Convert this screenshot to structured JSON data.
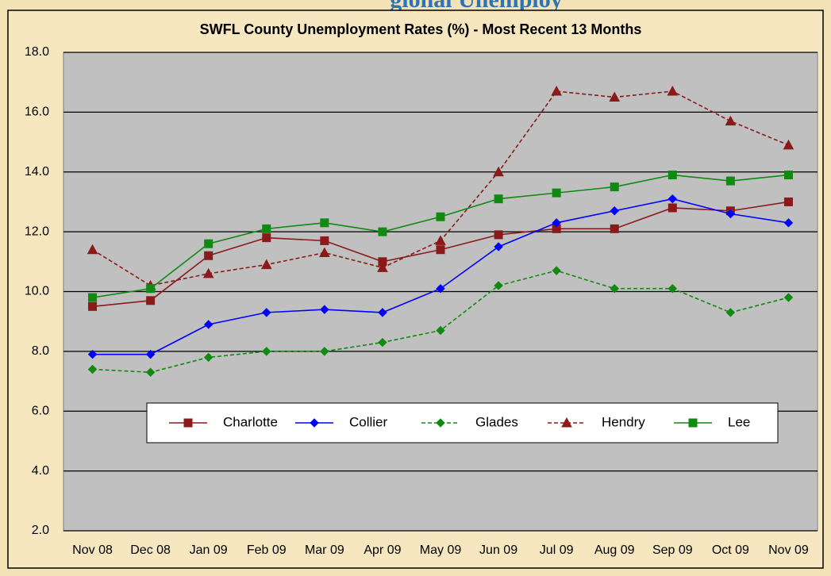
{
  "header_fragment": "gional Unemploy",
  "chart_data": {
    "type": "line",
    "title": "SWFL County Unemployment Rates (%)  - Most Recent 13 Months",
    "categories": [
      "Nov 08",
      "Dec 08",
      "Jan 09",
      "Feb 09",
      "Mar 09",
      "Apr 09",
      "May 09",
      "Jun 09",
      "Jul 09",
      "Aug 09",
      "Sep 09",
      "Oct 09",
      "Nov 09"
    ],
    "series": [
      {
        "name": "Charlotte",
        "color": "#8b1a1a",
        "marker": "square",
        "dashed": false,
        "values": [
          9.5,
          9.7,
          11.2,
          11.8,
          11.7,
          11.0,
          11.4,
          11.9,
          12.1,
          12.1,
          12.8,
          12.7,
          13.0
        ]
      },
      {
        "name": "Collier",
        "color": "#0000ff",
        "marker": "diamond",
        "dashed": false,
        "values": [
          7.9,
          7.9,
          8.9,
          9.3,
          9.4,
          9.3,
          10.1,
          11.5,
          12.3,
          12.7,
          13.1,
          12.6,
          12.3
        ]
      },
      {
        "name": "Glades",
        "color": "#108a10",
        "marker": "diamond",
        "dashed": true,
        "values": [
          7.4,
          7.3,
          7.8,
          8.0,
          8.0,
          8.3,
          8.7,
          10.2,
          10.7,
          10.1,
          10.1,
          9.3,
          9.8
        ]
      },
      {
        "name": "Hendry",
        "color": "#8b1a1a",
        "marker": "triangle",
        "dashed": true,
        "values": [
          11.4,
          10.2,
          10.6,
          10.9,
          11.3,
          10.8,
          11.7,
          14.0,
          16.7,
          16.5,
          16.7,
          15.7,
          14.9
        ]
      },
      {
        "name": "Lee",
        "color": "#108a10",
        "marker": "square",
        "dashed": false,
        "values": [
          9.8,
          10.1,
          11.6,
          12.1,
          12.3,
          12.0,
          12.5,
          13.1,
          13.3,
          13.5,
          13.9,
          13.7,
          13.9
        ]
      }
    ],
    "ylim": [
      2,
      18
    ],
    "yticks": [
      {
        "value": 2,
        "label": "2.0"
      },
      {
        "value": 4,
        "label": "4.0"
      },
      {
        "value": 6,
        "label": "6.0"
      },
      {
        "value": 8,
        "label": "8.0"
      },
      {
        "value": 10,
        "label": "10.0"
      },
      {
        "value": 12,
        "label": "12.0"
      },
      {
        "value": 14,
        "label": "14.0"
      },
      {
        "value": 16,
        "label": "16.0"
      },
      {
        "value": 18,
        "label": "18.0"
      }
    ],
    "grid": true,
    "plot_background": "#c0c0c0"
  }
}
